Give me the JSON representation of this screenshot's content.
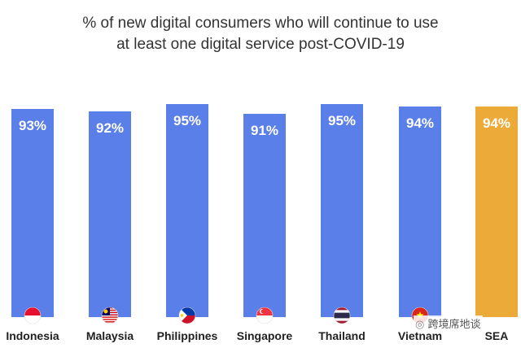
{
  "chart_data": {
    "type": "bar",
    "title_line1": "% of new digital consumers who will continue to use",
    "title_line2": "at least one digital service post-COVID-19",
    "categories": [
      "Indonesia",
      "Malaysia",
      "Philippines",
      "Singapore",
      "Thailand",
      "Vietnam",
      "SEA"
    ],
    "values": [
      93,
      92,
      95,
      91,
      95,
      94,
      94
    ],
    "value_labels": [
      "93%",
      "92%",
      "95%",
      "91%",
      "95%",
      "94%",
      "94%"
    ],
    "colors": [
      "#5B7FE8",
      "#5B7FE8",
      "#5B7FE8",
      "#5B7FE8",
      "#5B7FE8",
      "#5B7FE8",
      "#ECAA38"
    ],
    "flag_icons": [
      "indonesia-flag-icon",
      "malaysia-flag-icon",
      "philippines-flag-icon",
      "singapore-flag-icon",
      "thailand-flag-icon",
      "vietnam-flag-icon",
      ""
    ],
    "ylim": [
      0,
      100
    ],
    "grid": false,
    "legend": "none"
  },
  "watermark": "跨境席地谈"
}
